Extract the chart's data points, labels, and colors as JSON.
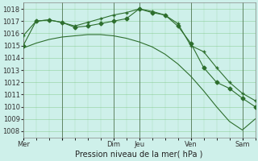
{
  "background_color": "#cef0ea",
  "grid_color": "#66bb66",
  "line_color": "#2d6e2d",
  "xlabel": "Pression niveau de la mer( hPa )",
  "ylim": [
    1007.5,
    1018.5
  ],
  "yticks": [
    1008,
    1009,
    1010,
    1011,
    1012,
    1013,
    1014,
    1015,
    1016,
    1017,
    1018
  ],
  "xtick_positions": [
    0,
    36,
    84,
    108,
    156,
    204
  ],
  "xtick_labels": [
    "Mer",
    "",
    "Dim",
    "Jeu",
    "Ven",
    "Sam"
  ],
  "xlim": [
    0,
    216
  ],
  "series": [
    {
      "x": [
        0,
        12,
        24,
        36,
        48,
        60,
        72,
        84,
        96,
        108,
        120,
        132,
        144,
        156,
        168,
        180,
        192,
        204,
        216
      ],
      "y": [
        1014.8,
        1015.2,
        1015.5,
        1015.7,
        1015.8,
        1015.9,
        1015.9,
        1015.8,
        1015.6,
        1015.3,
        1014.9,
        1014.3,
        1013.5,
        1012.5,
        1011.3,
        1010.0,
        1008.8,
        1008.1,
        1009.0
      ],
      "marker": null
    },
    {
      "x": [
        0,
        12,
        24,
        36,
        48,
        60,
        72,
        84,
        96,
        108,
        120,
        132,
        144,
        156,
        168,
        180,
        192,
        204,
        216
      ],
      "y": [
        1015.8,
        1017.0,
        1017.1,
        1016.9,
        1016.6,
        1016.9,
        1017.2,
        1017.5,
        1017.7,
        1018.0,
        1017.8,
        1017.5,
        1016.8,
        1015.0,
        1014.5,
        1013.2,
        1012.0,
        1011.1,
        1010.5
      ],
      "marker": "+"
    },
    {
      "x": [
        0,
        12,
        24,
        36,
        48,
        60,
        72,
        84,
        96,
        108,
        120,
        132,
        144,
        156,
        168,
        180,
        192,
        204,
        216
      ],
      "y": [
        1015.0,
        1017.0,
        1017.1,
        1016.9,
        1016.5,
        1016.6,
        1016.8,
        1017.0,
        1017.2,
        1018.0,
        1017.7,
        1017.5,
        1016.6,
        1015.2,
        1013.2,
        1012.0,
        1011.5,
        1010.7,
        1010.0
      ],
      "marker": "D"
    }
  ],
  "vline_positions": [
    0,
    36,
    84,
    108,
    156,
    204
  ],
  "figsize": [
    3.2,
    2.0
  ],
  "dpi": 100
}
